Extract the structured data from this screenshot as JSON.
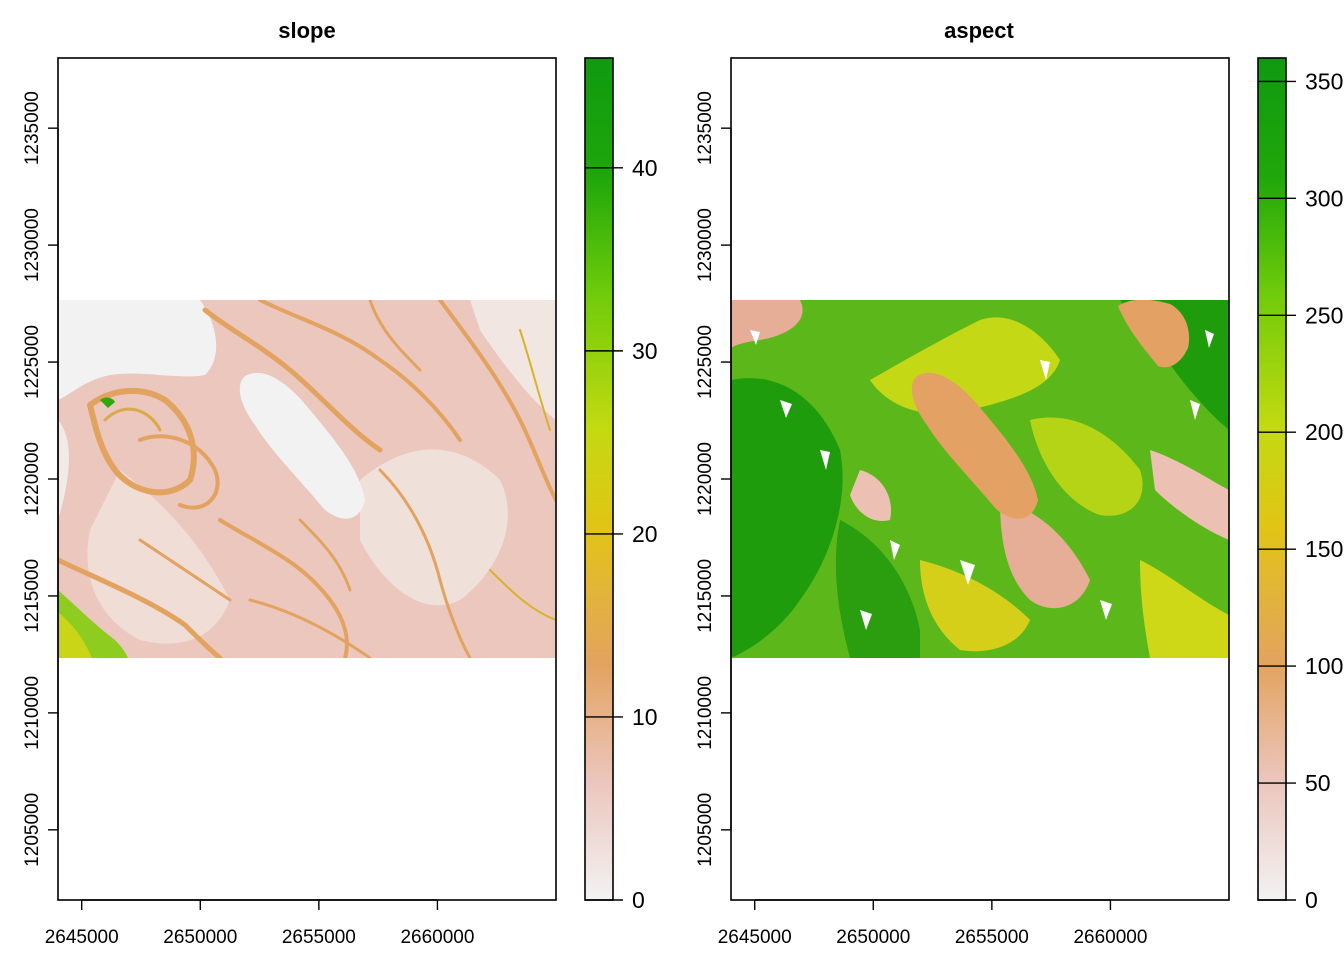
{
  "chart_data": [
    {
      "type": "heatmap",
      "title": "slope",
      "xlabel": "",
      "ylabel": "",
      "x_ticks": [
        2645000,
        2650000,
        2655000,
        2660000
      ],
      "y_ticks": [
        1205000,
        1210000,
        1215000,
        1220000,
        1225000,
        1230000,
        1235000
      ],
      "xlim": [
        2644000,
        2665000
      ],
      "ylim": [
        1202000,
        1238000
      ],
      "raster_extent": {
        "x": [
          2644000,
          2665000
        ],
        "y": [
          1217000,
          1228000
        ]
      },
      "legend": {
        "placement": "right",
        "ticks": [
          0,
          10,
          20,
          30,
          40
        ],
        "range": [
          0,
          46
        ]
      },
      "colors": [
        "#f2f2f2",
        "#e9b5a0",
        "#e3a360",
        "#e1c416",
        "#c3da10",
        "#6fcb0a",
        "#1fa70a",
        "#0f9a10"
      ],
      "background_value": 3
    },
    {
      "type": "heatmap",
      "title": "aspect",
      "xlabel": "",
      "ylabel": "",
      "x_ticks": [
        2645000,
        2650000,
        2655000,
        2660000
      ],
      "y_ticks": [
        1205000,
        1210000,
        1215000,
        1220000,
        1225000,
        1230000,
        1235000
      ],
      "xlim": [
        2644000,
        2665000
      ],
      "ylim": [
        1202000,
        1238000
      ],
      "raster_extent": {
        "x": [
          2644000,
          2665000
        ],
        "y": [
          1217000,
          1228000
        ]
      },
      "legend": {
        "placement": "right",
        "ticks": [
          0,
          50,
          100,
          150,
          200,
          250,
          300,
          350
        ],
        "range": [
          0,
          360
        ]
      },
      "colors": [
        "#f2f2f2",
        "#e9b5a0",
        "#e3a360",
        "#e1c416",
        "#c3da10",
        "#6fcb0a",
        "#1fa70a",
        "#0f9a10"
      ],
      "background_value": 110
    }
  ]
}
